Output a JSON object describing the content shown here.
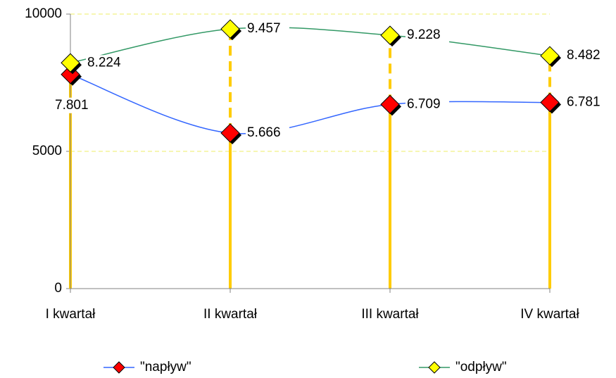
{
  "chart_data": {
    "type": "line",
    "categories": [
      "I kwartał",
      "II kwartał",
      "III kwartał",
      "IV kwartał"
    ],
    "series": [
      {
        "name": "\"napływ\"",
        "color": "#3366ff",
        "marker_color": "#ff0000",
        "values": [
          7801,
          5666,
          6709,
          6781
        ],
        "value_labels": [
          "7.801",
          "5.666",
          "6.709",
          "6.781"
        ]
      },
      {
        "name": "\"odpływ\"",
        "color": "#339966",
        "marker_color": "#ffff00",
        "values": [
          8224,
          9457,
          9228,
          8482
        ],
        "value_labels": [
          "8.224",
          "9.457",
          "9.228",
          "8.482"
        ]
      }
    ],
    "ylim": [
      0,
      10000
    ],
    "yticks": [
      0,
      5000,
      10000
    ],
    "grid": true,
    "drop_line_color": "#ffcc00",
    "legend": "bottom"
  }
}
